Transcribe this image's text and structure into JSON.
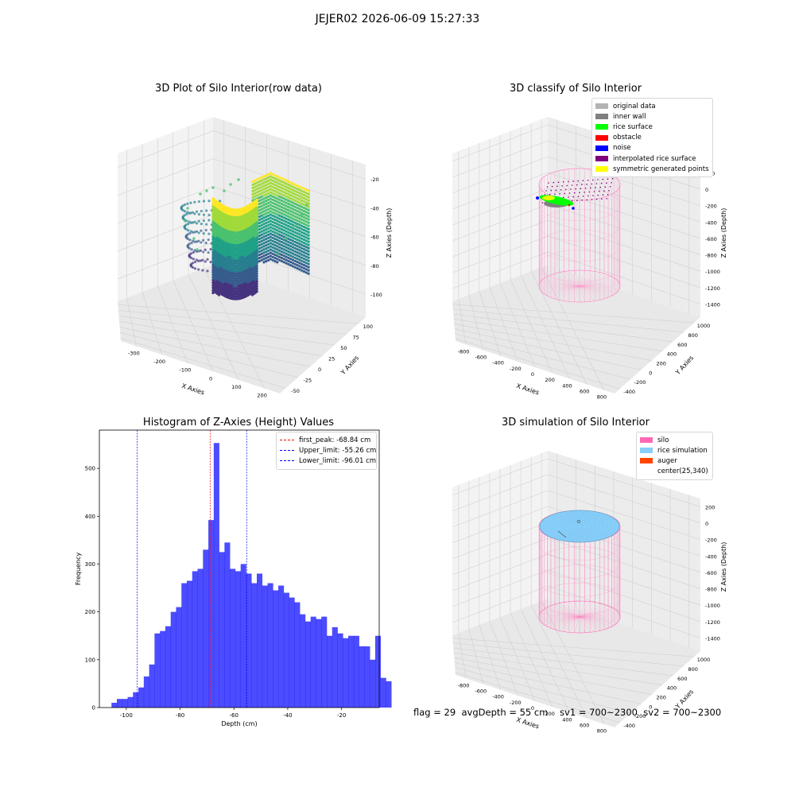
{
  "suptitle": "JEJER02 2026-06-09 15:27:33",
  "panels": {
    "raw": {
      "title": "3D Plot of Silo Interior(row data)",
      "xlabel": "X Axies",
      "ylabel": "Y Axies",
      "zlabel": "Z Axies (Depth)",
      "xticks": [
        "-300",
        "-200",
        "-100",
        "0",
        "100",
        "200"
      ],
      "yticks": [
        "-50",
        "-25",
        "0",
        "25",
        "50",
        "75",
        "100"
      ],
      "zticks": [
        "-20",
        "-40",
        "-60",
        "-80",
        "-100"
      ]
    },
    "classify": {
      "title": "3D classify of Silo Interior",
      "xlabel": "X Axies",
      "ylabel": "Y Axies",
      "zlabel": "Z Axies (Depth)",
      "xticks": [
        "-800",
        "-600",
        "-400",
        "-200",
        "0",
        "200",
        "400",
        "600",
        "800"
      ],
      "yticks": [
        "-400",
        "-200",
        "0",
        "200",
        "400",
        "600",
        "800",
        "1000"
      ],
      "zticks": [
        "200",
        "0",
        "-200",
        "-400",
        "-600",
        "-800",
        "-1000",
        "-1200",
        "-1400"
      ],
      "legend": [
        {
          "label": "original data",
          "color": "#b3b3b3"
        },
        {
          "label": "inner wall",
          "color": "#808080"
        },
        {
          "label": "rice surface",
          "color": "#00ff00"
        },
        {
          "label": "obstacle",
          "color": "#ff0000"
        },
        {
          "label": "noise",
          "color": "#0000ff"
        },
        {
          "label": "interpolated rice surface",
          "color": "#800080"
        },
        {
          "label": "symmetric generated points",
          "color": "#ffff00"
        }
      ]
    },
    "simulation": {
      "title": "3D simulation of Silo Interior",
      "xlabel": "X Axies",
      "ylabel": "Y Axies",
      "zlabel": "Z Axies (Depth)",
      "xticks": [
        "-800",
        "-600",
        "-400",
        "-200",
        "0",
        "200",
        "400",
        "600",
        "800"
      ],
      "yticks": [
        "-400",
        "-200",
        "0",
        "200",
        "400",
        "600",
        "800",
        "1000"
      ],
      "zticks": [
        "200",
        "0",
        "-200",
        "-400",
        "-600",
        "-800",
        "-1000",
        "-1200",
        "-1400"
      ],
      "legend": [
        {
          "label": "silo",
          "color": "#ff69b4"
        },
        {
          "label": "rice simulation",
          "color": "#87cefa"
        },
        {
          "label": "auger",
          "color": "#ff4500"
        },
        {
          "label": "center(25,340)",
          "color": ""
        }
      ]
    }
  },
  "status": "flag = 29  avgDepth = 55 cm    sv1 = 700~2300  sv2 = 700~2300",
  "chart_data": [
    {
      "type": "scatter",
      "title": "3D Plot of Silo Interior(row data)",
      "xlabel": "X Axies",
      "ylabel": "Y Axies",
      "zlabel": "Z Axies (Depth)",
      "xlim": [
        -330,
        200
      ],
      "ylim": [
        -60,
        110
      ],
      "zlim": [
        -110,
        -10
      ],
      "colormap": "viridis"
    },
    {
      "type": "scatter",
      "title": "3D classify of Silo Interior",
      "xlabel": "X Axies",
      "ylabel": "Y Axies",
      "zlabel": "Z Axies (Depth)",
      "xlim": [
        -850,
        850
      ],
      "ylim": [
        -500,
        1100
      ],
      "zlim": [
        -1500,
        250
      ],
      "series": [
        "original data",
        "inner wall",
        "rice surface",
        "obstacle",
        "noise",
        "interpolated rice surface",
        "symmetric generated points"
      ],
      "legend_loc": "upper right"
    },
    {
      "type": "bar",
      "title": "Histogram of Z-Axies (Height) Values",
      "xlabel": "Depth (cm)",
      "ylabel": "Frequency",
      "xlim": [
        -110,
        -6
      ],
      "ylim": [
        0,
        580
      ],
      "xticks": [
        -100,
        -80,
        -60,
        -40,
        -20
      ],
      "yticks": [
        0,
        100,
        200,
        300,
        400,
        500
      ],
      "bin_start": -105.5,
      "bin_width": 2,
      "values": [
        10,
        18,
        18,
        22,
        32,
        42,
        65,
        90,
        155,
        160,
        170,
        200,
        210,
        260,
        265,
        285,
        290,
        330,
        392,
        553,
        325,
        345,
        290,
        285,
        300,
        280,
        260,
        280,
        255,
        260,
        245,
        255,
        240,
        230,
        220,
        195,
        180,
        190,
        185,
        190,
        150,
        168,
        155,
        145,
        150,
        150,
        128,
        128,
        100,
        150,
        62,
        55
      ],
      "color": "#0000ff",
      "lines": [
        {
          "label": "first_peak: -68.84 cm",
          "x": -68.84,
          "color": "#ff0000"
        },
        {
          "label": "Upper_limit: -55.26 cm",
          "x": -55.26,
          "color": "#0000ff"
        },
        {
          "label": "Lower_limit: -96.01 cm",
          "x": -96.01,
          "color": "#0000ff"
        }
      ]
    },
    {
      "type": "scatter",
      "title": "3D simulation of Silo Interior",
      "xlabel": "X Axies",
      "ylabel": "Y Axies",
      "zlabel": "Z Axies (Depth)",
      "xlim": [
        -850,
        850
      ],
      "ylim": [
        -500,
        1100
      ],
      "zlim": [
        -1500,
        250
      ],
      "series": [
        "silo",
        "rice simulation",
        "auger",
        "center(25,340)"
      ],
      "legend_loc": "upper right"
    }
  ]
}
